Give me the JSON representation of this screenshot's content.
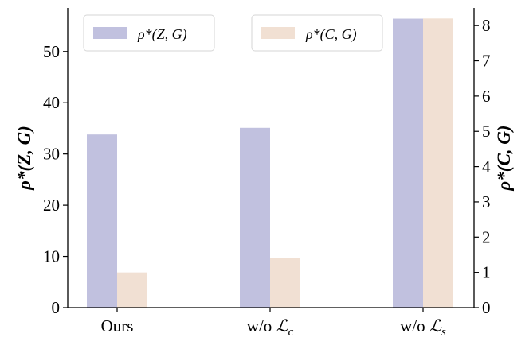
{
  "chart_data": {
    "type": "bar",
    "categories": [
      "Ours",
      "w/o ℒc",
      "w/o ℒs"
    ],
    "category_labels": [
      {
        "main": "Ours",
        "symbol": "",
        "sub": ""
      },
      {
        "main": "w/o ",
        "symbol": "ℒ",
        "sub": "c"
      },
      {
        "main": "w/o ",
        "symbol": "ℒ",
        "sub": "s"
      }
    ],
    "series": [
      {
        "name": "ρ*(Z, G)",
        "axis": "left",
        "values": [
          33.8,
          35.1,
          56.4
        ],
        "color": "#c1c1df"
      },
      {
        "name": "ρ*(C, G)",
        "axis": "right",
        "values": [
          1.0,
          1.4,
          8.2
        ],
        "color": "#f1e0d3"
      }
    ],
    "left_axis": {
      "title": "ρ*(Z, G)",
      "ylim": [
        0,
        58.5
      ],
      "ticks": [
        0,
        10,
        20,
        30,
        40,
        50
      ]
    },
    "right_axis": {
      "title": "ρ*(C, G)",
      "ylim": [
        0,
        8.5
      ],
      "ticks": [
        0,
        1,
        2,
        3,
        4,
        5,
        6,
        7,
        8
      ]
    },
    "legends": [
      {
        "label": "ρ*(Z, G)",
        "color": "#c1c1df",
        "placement": "top-left"
      },
      {
        "label": "ρ*(C, G)",
        "color": "#f1e0d3",
        "placement": "top-right"
      }
    ],
    "grid": false
  }
}
